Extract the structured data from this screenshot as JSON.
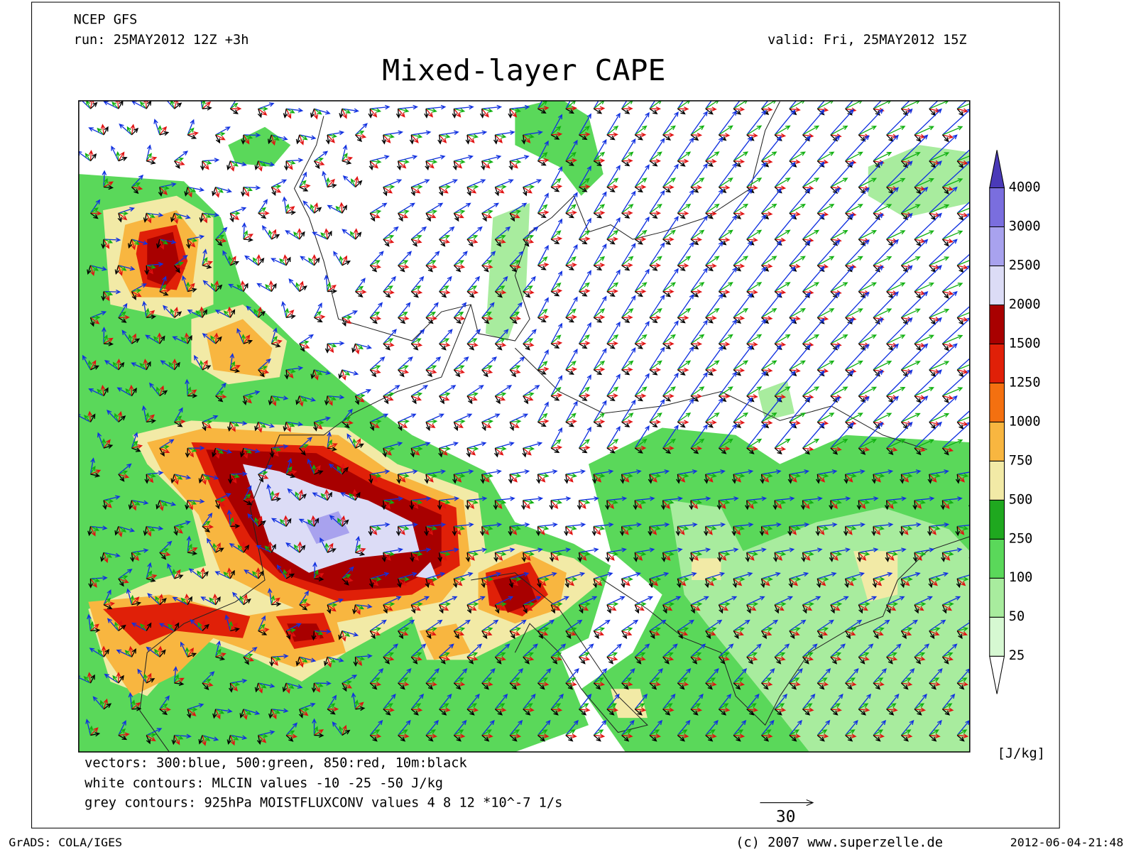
{
  "header": {
    "model": "NCEP GFS",
    "run": "run: 25MAY2012 12Z +3h",
    "valid": "valid: Fri, 25MAY2012 15Z",
    "title": "Mixed-layer CAPE"
  },
  "colorbar": {
    "levels": [
      25,
      50,
      100,
      250,
      500,
      750,
      1000,
      1250,
      1500,
      2000,
      2500,
      3000,
      4000
    ],
    "colors": [
      "#ffffff",
      "#d6f8d2",
      "#a8ec9e",
      "#5ad85a",
      "#1fa81f",
      "#f2eaa6",
      "#f8b640",
      "#f47010",
      "#e02008",
      "#a80000",
      "#dcdcf6",
      "#a8a2ee",
      "#7a6ede",
      "#4a3ab8"
    ],
    "unit": "[J/kg]"
  },
  "notes": [
    "vectors: 300:blue, 500:green, 850:red, 10m:black",
    "white contours: MLCIN values -10 -25 -50 J/kg",
    "grey contours: 925hPa MOISTFLUXCONV values 4 8 12 *10^-7 1/s"
  ],
  "reference_vector": 30,
  "footer": {
    "software": "GrADS: COLA/IGES",
    "credit": "(c) 2007 www.superzelle.de",
    "timestamp": "2012-06-04-21:48"
  }
}
